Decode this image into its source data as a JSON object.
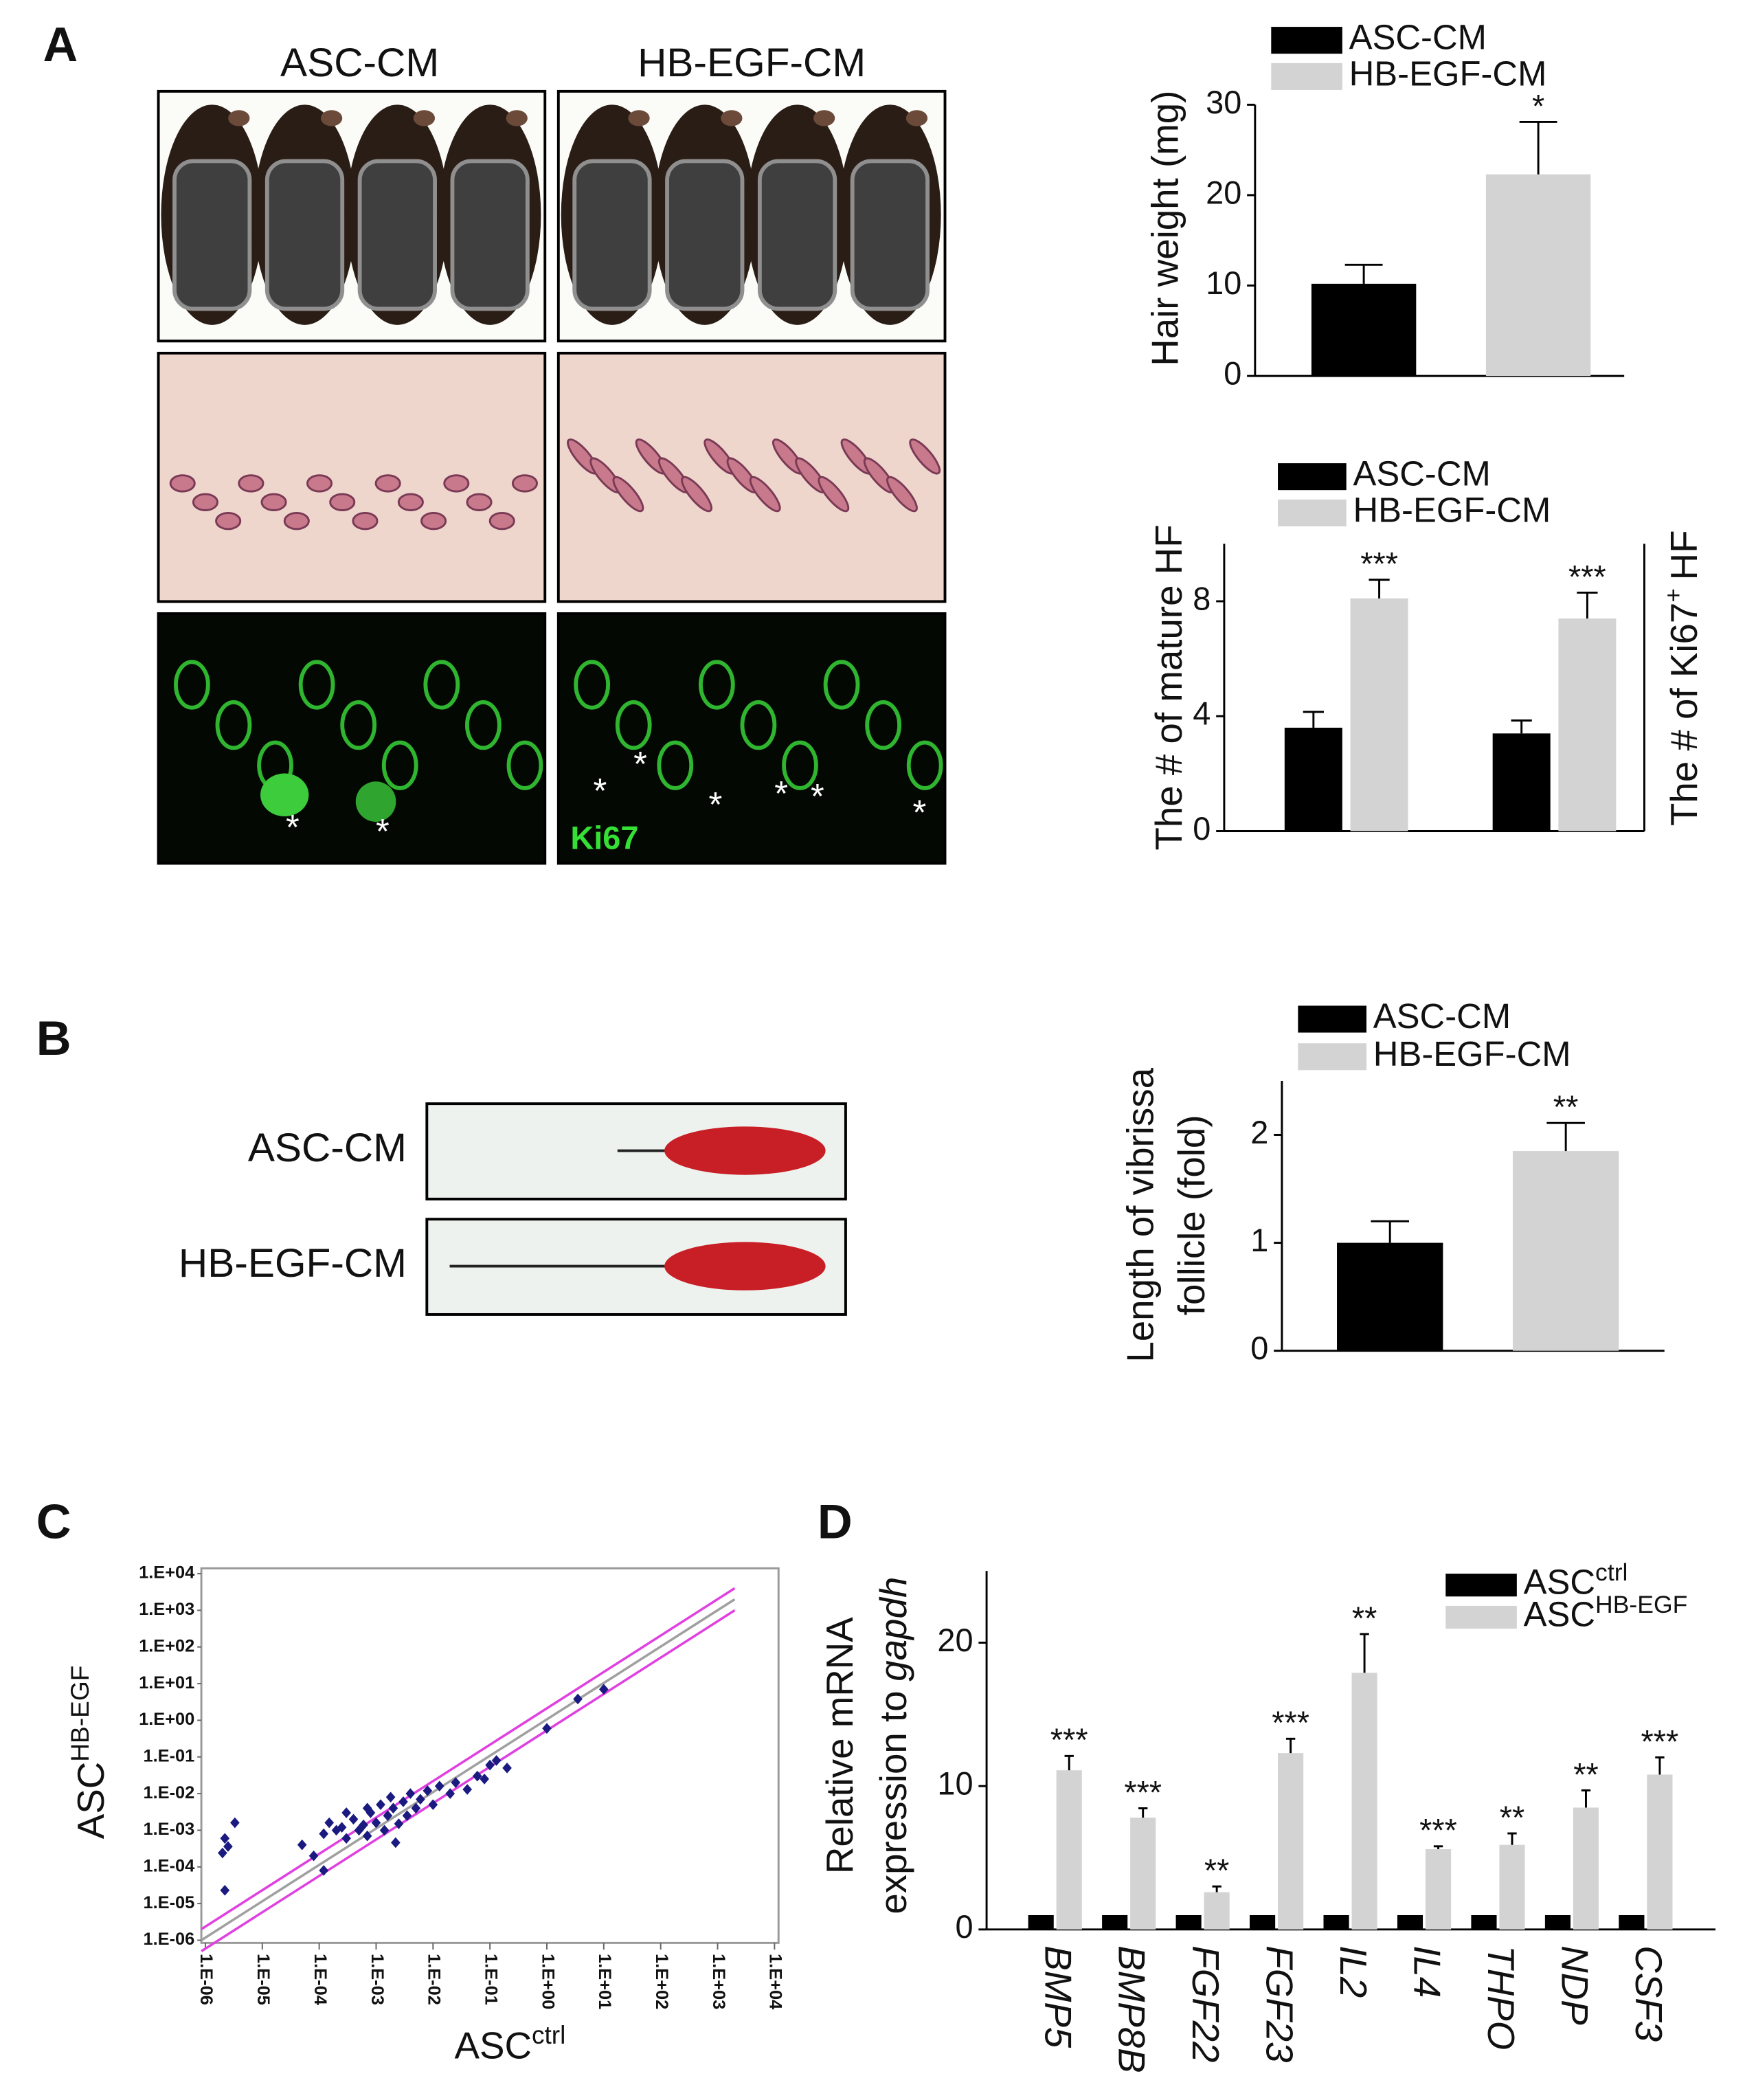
{
  "panel_labels": [
    "A",
    "B",
    "C",
    "D"
  ],
  "panel_a_images": {
    "columns": [
      "ASC-CM",
      "HB-EGF-CM"
    ],
    "stain_label": "Ki67",
    "left_asterisks": [
      "*",
      "*"
    ],
    "right_asterisks": [
      "*",
      "*",
      "*",
      "*",
      "*",
      "*"
    ]
  },
  "panel_b_images": {
    "rows": [
      "ASC-CM",
      "HB-EGF-CM"
    ]
  },
  "chart_data": [
    {
      "type": "bar",
      "ylabel": "Hair weight (mg)",
      "ylim": [
        0,
        30
      ],
      "yticks": [
        0,
        10,
        20,
        30
      ],
      "series": [
        {
          "name": "ASC-CM",
          "color": "#000000",
          "values": [
            10.2
          ],
          "errors": [
            2.1
          ]
        },
        {
          "name": "HB-EGF-CM",
          "color": "#d3d3d3",
          "values": [
            22.3
          ],
          "errors": [
            5.8
          ],
          "significance": [
            "*"
          ]
        }
      ]
    },
    {
      "type": "bar",
      "ylabel": "The # of mature HF",
      "y2label": {
        "text": "The # of Ki67",
        "sup": "+",
        "tail": "HF"
      },
      "ylim": [
        0,
        10
      ],
      "yticks": [
        0,
        4,
        8
      ],
      "y2lim": [
        0,
        10
      ],
      "category_axes": [
        "y",
        "y2"
      ],
      "series": [
        {
          "name": "ASC-CM",
          "color": "#000000",
          "values": [
            3.6,
            3.4
          ],
          "errors": [
            0.55,
            0.45
          ]
        },
        {
          "name": "HB-EGF-CM",
          "color": "#d3d3d3",
          "values": [
            8.1,
            7.4
          ],
          "errors": [
            0.65,
            0.9
          ],
          "significance": [
            "***",
            "***"
          ]
        }
      ]
    },
    {
      "type": "bar",
      "ylabel": [
        "Length of vibrissa",
        "follicle (fold)"
      ],
      "ylim": [
        0,
        2.5
      ],
      "yticks": [
        0,
        1,
        2
      ],
      "series": [
        {
          "name": "ASC-CM",
          "color": "#000000",
          "values": [
            1.0
          ],
          "errors": [
            0.2
          ]
        },
        {
          "name": "HB-EGF-CM",
          "color": "#d3d3d3",
          "values": [
            1.85
          ],
          "errors": [
            0.26
          ],
          "significance": [
            "**"
          ]
        }
      ]
    },
    {
      "type": "scatter",
      "xlabel": {
        "text": "ASC",
        "sup": "ctrl"
      },
      "ylabel": {
        "text": "ASC",
        "sup": "HB-EGF"
      },
      "log_x": true,
      "log_y": true,
      "xlim": [
        1e-06,
        10000.0
      ],
      "ylim": [
        1e-06,
        10000.0
      ],
      "xticks": [
        {
          "value": 1e-06,
          "label": "1.E-06"
        },
        {
          "value": 1e-05,
          "label": "1.E-05"
        },
        {
          "value": 0.0001,
          "label": "1.E-04"
        },
        {
          "value": 0.001,
          "label": "1.E-03"
        },
        {
          "value": 0.01,
          "label": "1.E-02"
        },
        {
          "value": 0.1,
          "label": "1.E-01"
        },
        {
          "value": 1,
          "label": "1.E+00"
        },
        {
          "value": 10,
          "label": "1.E+01"
        },
        {
          "value": 100,
          "label": "1.E+02"
        },
        {
          "value": 1000,
          "label": "1.E+03"
        },
        {
          "value": 10000,
          "label": "1.E+04"
        }
      ],
      "yticks": [
        {
          "value": 1e-06,
          "label": "1.E-06"
        },
        {
          "value": 1e-05,
          "label": "1.E-05"
        },
        {
          "value": 0.0001,
          "label": "1.E-04"
        },
        {
          "value": 0.001,
          "label": "1.E-03"
        },
        {
          "value": 0.01,
          "label": "1.E-02"
        },
        {
          "value": 0.1,
          "label": "1.E-01"
        },
        {
          "value": 1,
          "label": "1.E+00"
        },
        {
          "value": 10,
          "label": "1.E+01"
        },
        {
          "value": 100,
          "label": "1.E+02"
        },
        {
          "value": 1000,
          "label": "1.E+03"
        },
        {
          "value": 10000,
          "label": "1.E+04"
        }
      ],
      "color": "#1a1a80",
      "x": [
        2.2e-06,
        3.3e-06,
        2e-06,
        2.2e-06,
        2.5e-06,
        5e-05,
        0.00012,
        8e-05,
        0.00012,
        0.00015,
        0.0002,
        0.00025,
        0.0003,
        0.0004,
        0.0005,
        0.0006,
        0.0007,
        0.0008,
        0.001,
        0.0012,
        0.0014,
        0.0016,
        0.002,
        0.0022,
        0.0025,
        0.003,
        0.0035,
        0.004,
        0.005,
        0.006,
        0.008,
        0.01,
        0.013,
        0.02,
        0.025,
        0.04,
        0.06,
        0.08,
        0.1,
        0.13,
        0.2,
        1,
        3.5,
        10,
        0.0003,
        0.0007,
        0.0018
      ],
      "y": [
        0.0006,
        0.0016,
        0.00024,
        2.3e-05,
        0.00036,
        0.0004,
        8e-05,
        0.0002,
        0.0008,
        0.0016,
        0.001,
        0.0012,
        0.0006,
        0.002,
        0.001,
        0.0014,
        0.0007,
        0.003,
        0.0016,
        0.005,
        0.001,
        0.0025,
        0.004,
        0.00046,
        0.0015,
        0.006,
        0.0025,
        0.01,
        0.004,
        0.007,
        0.012,
        0.005,
        0.016,
        0.01,
        0.02,
        0.013,
        0.03,
        0.025,
        0.06,
        0.08,
        0.05,
        0.6,
        3.8,
        7,
        0.003,
        0.004,
        0.008
      ],
      "reference_lines": [
        {
          "fold": 1,
          "color": "#a0a0a0"
        },
        {
          "fold": 2,
          "color": "#e040e0"
        },
        {
          "fold": 0.5,
          "color": "#e040e0"
        }
      ]
    },
    {
      "type": "bar",
      "ylabel": [
        "Relative mRNA",
        "expression to"
      ],
      "ylabel_italic": "gapdh",
      "categories": [
        "BMP5",
        "BMP8B",
        "FGF22",
        "FGF23",
        "IL2",
        "IL4",
        "THPO",
        "NDP",
        "CSF3"
      ],
      "ylim": [
        0,
        25
      ],
      "yticks": [
        0,
        10,
        20
      ],
      "series": [
        {
          "name": "ASC",
          "name_sup": "ctrl",
          "color": "#000000",
          "values": [
            1,
            1,
            1,
            1,
            1,
            1,
            1,
            1,
            1
          ]
        },
        {
          "name": "ASC",
          "name_sup": "HB-EGF",
          "color": "#d3d3d3",
          "values": [
            11.1,
            7.8,
            2.6,
            12.3,
            17.9,
            5.6,
            5.9,
            8.5,
            10.8
          ],
          "errors": [
            1.0,
            0.65,
            0.4,
            1.0,
            2.7,
            0.2,
            0.8,
            1.2,
            1.2
          ],
          "significance": [
            "***",
            "***",
            "**",
            "***",
            "**",
            "***",
            "**",
            "**",
            "***"
          ]
        }
      ]
    }
  ]
}
